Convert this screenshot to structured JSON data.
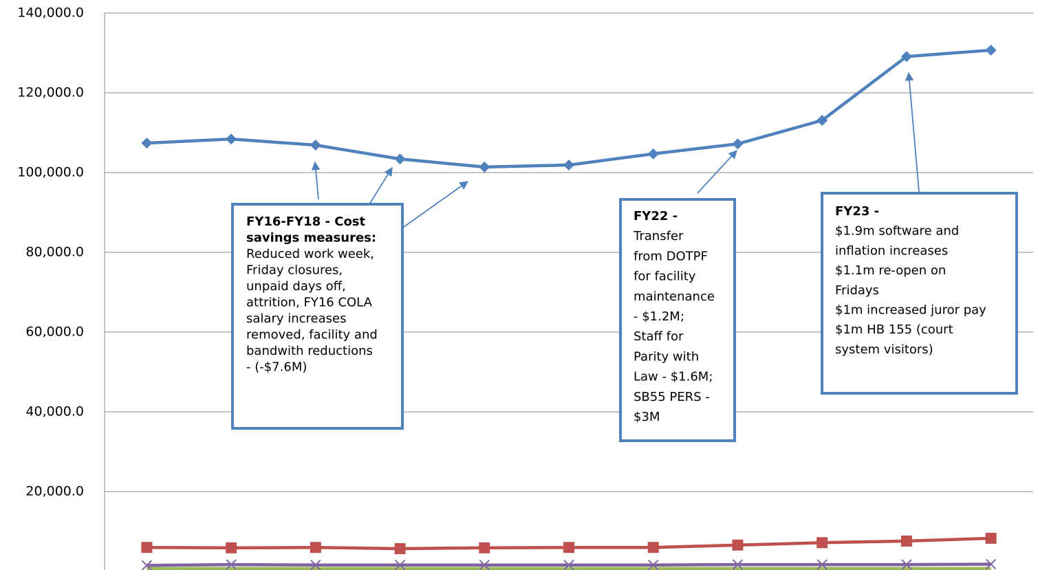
{
  "chart_data": {
    "type": "line",
    "categories": [
      null,
      null,
      null,
      null,
      null,
      null,
      null,
      null,
      null,
      null,
      null
    ],
    "series": [
      {
        "color": "#4f81bd",
        "marker": "diamond",
        "values": [
          107400,
          108400,
          106900,
          103400,
          101400,
          101900,
          104700,
          107200,
          113100,
          129100,
          130700
        ]
      },
      {
        "color": "#c0504d",
        "marker": "square",
        "values": [
          6000,
          5900,
          6000,
          5700,
          5900,
          6000,
          6000,
          6600,
          7200,
          7600,
          8300
        ]
      },
      {
        "color": "#8064a2",
        "marker": "x",
        "values": [
          1500,
          1700,
          1600,
          1600,
          1600,
          1600,
          1600,
          1700,
          1700,
          1700,
          1800
        ]
      },
      {
        "color": "#9bbb59",
        "marker": "none",
        "values": [
          600,
          600,
          600,
          600,
          600,
          600,
          600,
          600,
          600,
          600,
          600
        ]
      }
    ],
    "ylim": [
      0,
      140000
    ],
    "yticks": [
      {
        "value": 20000,
        "label": "20,000.0"
      },
      {
        "value": 40000,
        "label": "40,000.0"
      },
      {
        "value": 60000,
        "label": "60,000.0"
      },
      {
        "value": 80000,
        "label": "80,000.0"
      },
      {
        "value": 100000,
        "label": "100,000.0"
      },
      {
        "value": 120000,
        "label": "120,000.0"
      },
      {
        "value": 140000,
        "label": "140,000.0"
      }
    ],
    "grid": true,
    "annotations": [
      {
        "bold_lines": [
          "FY16-FY18 - Cost",
          "savings measures:"
        ],
        "lines": [
          "Reduced work week,",
          "Friday closures,",
          "unpaid days off,",
          "attrition, FY16 COLA",
          "salary increases",
          "removed, facility and",
          "bandwith reductions",
          "- (-$7.6M)"
        ]
      },
      {
        "bold_lines": [
          "FY22 -"
        ],
        "lines": [
          "Transfer",
          "from DOTPF",
          "for facility",
          "maintenance",
          "- $1.2M;",
          "Staff for",
          "Parity with",
          "Law - $1.6M;",
          "SB55 PERS -",
          "$3M"
        ]
      },
      {
        "bold_lines": [
          "FY23 -"
        ],
        "lines": [
          "$1.9m software and",
          "inflation increases",
          "$1.1m re-open on",
          "Fridays",
          "$1m increased juror pay",
          "$1m HB 155 (court",
          "system visitors)"
        ]
      }
    ]
  }
}
